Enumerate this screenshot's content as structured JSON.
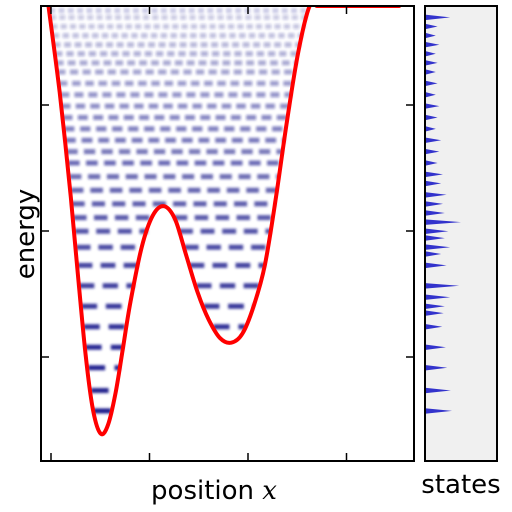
{
  "chart_data": [
    {
      "type": "line",
      "xlabel": "position",
      "xlabel_var": "x",
      "ylabel": "energy",
      "xlim": [
        0,
        1
      ],
      "ylim": [
        0,
        1
      ],
      "x_tick_count": 4,
      "y_tick_count": 3,
      "tick_labels_shown": false,
      "potential": {
        "color": "#ff0000",
        "x": [
          0.02,
          0.05,
          0.08,
          0.1,
          0.12,
          0.14,
          0.16,
          0.18,
          0.2,
          0.22,
          0.24,
          0.27,
          0.3,
          0.33,
          0.36,
          0.39,
          0.42,
          0.45,
          0.48,
          0.51,
          0.54,
          0.57,
          0.6,
          0.63,
          0.66,
          0.69,
          0.72,
          0.74,
          0.76,
          0.78,
          0.8,
          0.82,
          0.84,
          0.86,
          0.88,
          0.9,
          0.92,
          0.94,
          0.96
        ],
        "y": [
          1.0,
          0.81,
          0.58,
          0.4,
          0.23,
          0.11,
          0.06,
          0.08,
          0.15,
          0.25,
          0.35,
          0.47,
          0.54,
          0.56,
          0.53,
          0.45,
          0.37,
          0.31,
          0.27,
          0.26,
          0.28,
          0.34,
          0.43,
          0.58,
          0.75,
          0.9,
          1.0,
          1.0,
          1.0,
          1.0,
          1.0,
          1.0,
          1.0,
          1.0,
          1.0,
          1.0,
          1.0,
          1.0,
          1.0
        ]
      },
      "level_color": "#1a1a8c",
      "energy_levels": [
        0.11,
        0.155,
        0.205,
        0.25,
        0.295,
        0.34,
        0.385,
        0.43,
        0.47,
        0.505,
        0.535,
        0.565,
        0.595,
        0.625,
        0.655,
        0.68,
        0.705,
        0.73,
        0.755,
        0.78,
        0.805,
        0.83,
        0.855,
        0.875,
        0.895,
        0.915,
        0.935,
        0.955,
        0.975,
        0.99
      ]
    },
    {
      "type": "area",
      "xlabel": "states",
      "color": "#3333cc",
      "background": "#f0f0f0",
      "peaks": [
        {
          "y": 0.11,
          "v": 0.75
        },
        {
          "y": 0.155,
          "v": 0.72
        },
        {
          "y": 0.205,
          "v": 0.62
        },
        {
          "y": 0.25,
          "v": 0.58
        },
        {
          "y": 0.295,
          "v": 0.48
        },
        {
          "y": 0.325,
          "v": 0.52
        },
        {
          "y": 0.34,
          "v": 0.55
        },
        {
          "y": 0.36,
          "v": 0.7
        },
        {
          "y": 0.385,
          "v": 0.95
        },
        {
          "y": 0.43,
          "v": 0.6
        },
        {
          "y": 0.455,
          "v": 0.45
        },
        {
          "y": 0.47,
          "v": 0.7
        },
        {
          "y": 0.49,
          "v": 0.55
        },
        {
          "y": 0.505,
          "v": 0.65
        },
        {
          "y": 0.525,
          "v": 1.0
        },
        {
          "y": 0.545,
          "v": 0.55
        },
        {
          "y": 0.565,
          "v": 0.5
        },
        {
          "y": 0.585,
          "v": 0.6
        },
        {
          "y": 0.61,
          "v": 0.45
        },
        {
          "y": 0.63,
          "v": 0.5
        },
        {
          "y": 0.655,
          "v": 0.35
        },
        {
          "y": 0.68,
          "v": 0.4
        },
        {
          "y": 0.705,
          "v": 0.45
        },
        {
          "y": 0.73,
          "v": 0.3
        },
        {
          "y": 0.755,
          "v": 0.35
        },
        {
          "y": 0.78,
          "v": 0.4
        },
        {
          "y": 0.805,
          "v": 0.3
        },
        {
          "y": 0.83,
          "v": 0.35
        },
        {
          "y": 0.855,
          "v": 0.3
        },
        {
          "y": 0.875,
          "v": 0.35
        },
        {
          "y": 0.895,
          "v": 0.3
        },
        {
          "y": 0.915,
          "v": 0.4
        },
        {
          "y": 0.935,
          "v": 0.3
        },
        {
          "y": 0.955,
          "v": 0.35
        },
        {
          "y": 0.975,
          "v": 0.7
        }
      ]
    }
  ]
}
